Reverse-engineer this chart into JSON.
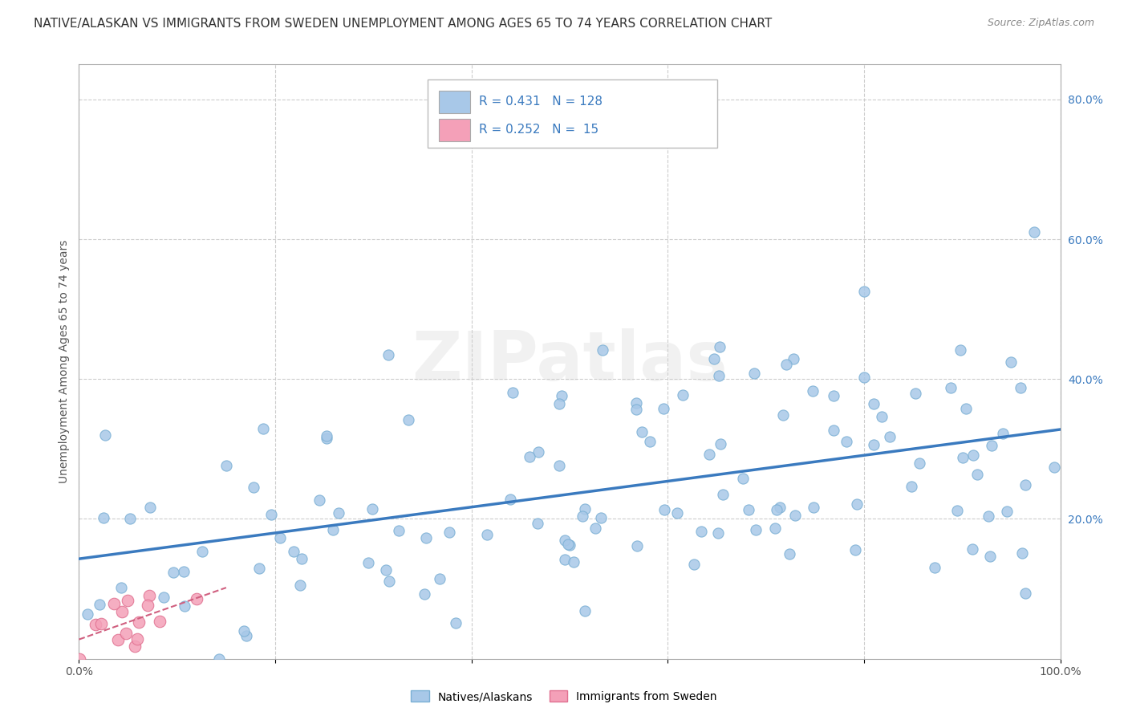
{
  "title": "NATIVE/ALASKAN VS IMMIGRANTS FROM SWEDEN UNEMPLOYMENT AMONG AGES 65 TO 74 YEARS CORRELATION CHART",
  "source": "Source: ZipAtlas.com",
  "ylabel": "Unemployment Among Ages 65 to 74 years",
  "xmin": 0.0,
  "xmax": 1.0,
  "ymin": 0.0,
  "ymax": 0.85,
  "native_R": 0.431,
  "native_N": 128,
  "immigrant_R": 0.252,
  "immigrant_N": 15,
  "native_color": "#a8c8e8",
  "native_edge_color": "#7aafd4",
  "immigrant_color": "#f4a0b8",
  "immigrant_edge_color": "#e07090",
  "regression_color_native": "#3a7abf",
  "regression_color_immigrant": "#d06080",
  "legend_text_color": "#3a7abf",
  "background_color": "#ffffff",
  "grid_color": "#cccccc",
  "legend_labels": [
    "Natives/Alaskans",
    "Immigrants from Sweden"
  ],
  "watermark": "ZIPatlas",
  "title_fontsize": 11,
  "tick_label_color": "#3a7abf",
  "axis_label_fontsize": 10,
  "right_ytick_positions": [
    0.2,
    0.4,
    0.6,
    0.8
  ],
  "right_ytick_labels": [
    "20.0%",
    "40.0%",
    "60.0%",
    "80.0%"
  ]
}
